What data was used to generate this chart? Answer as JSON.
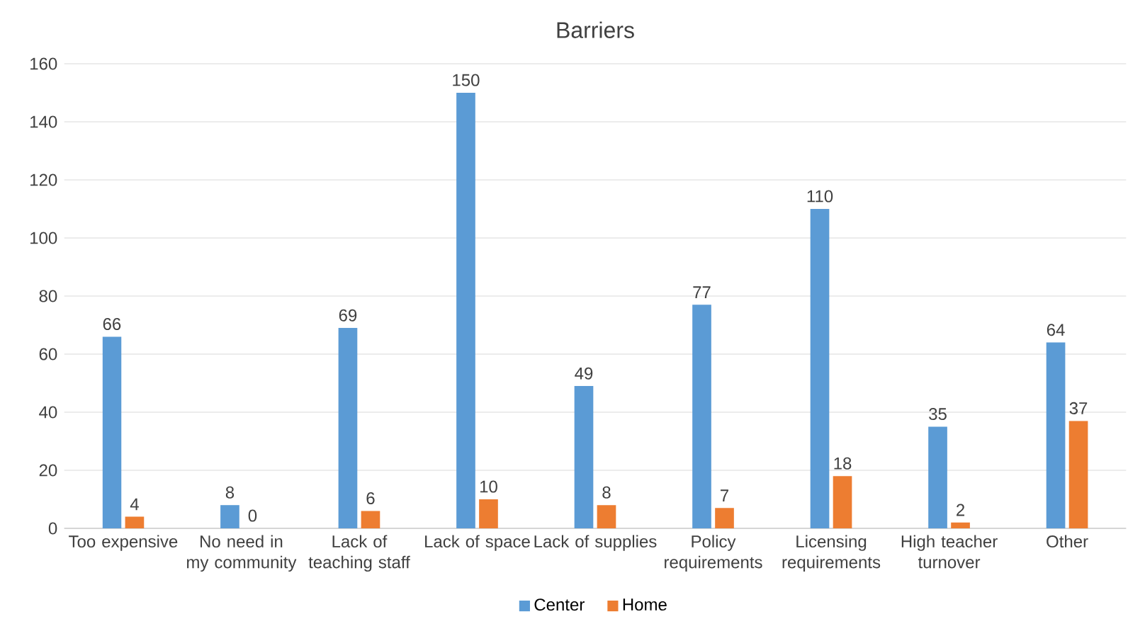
{
  "chart_data": {
    "type": "bar",
    "title": "Barriers",
    "categories": [
      "Too expensive",
      "No need in my community",
      "Lack of teaching staff",
      "Lack of space",
      "Lack of supplies",
      "Policy requirements",
      "Licensing requirements",
      "High teacher turnover",
      "Other"
    ],
    "series": [
      {
        "name": "Center",
        "color": "#5b9bd5",
        "values": [
          66,
          8,
          69,
          150,
          49,
          77,
          110,
          35,
          64
        ]
      },
      {
        "name": "Home",
        "color": "#ed7d31",
        "values": [
          4,
          0,
          6,
          10,
          8,
          7,
          18,
          2,
          37
        ]
      }
    ],
    "ylim": [
      0,
      160
    ],
    "yticks": [
      0,
      20,
      40,
      60,
      80,
      100,
      120,
      140,
      160
    ],
    "grid": "y",
    "legend": "bottom",
    "data_labels": true
  }
}
